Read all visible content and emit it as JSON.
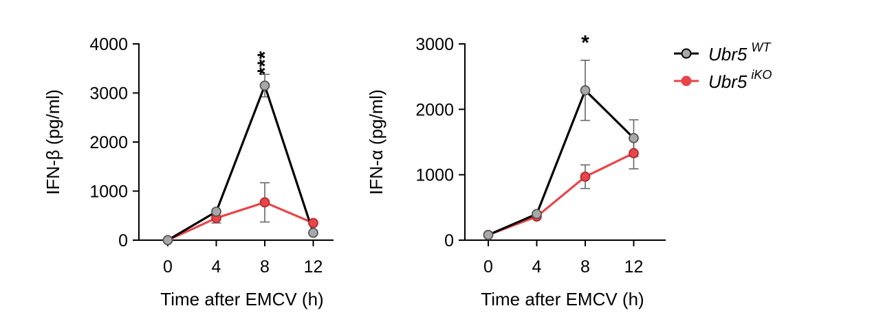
{
  "chart_data": [
    {
      "type": "line",
      "x": [
        0,
        4,
        8,
        12
      ],
      "xticks": [
        "0",
        "4",
        "8",
        "12"
      ],
      "xlim": [
        -2.5,
        14.5
      ],
      "ylim": [
        0,
        4000
      ],
      "yticks": [
        "0",
        "1000",
        "2000",
        "3000",
        "4000"
      ],
      "xlabel": "Time after EMCV (h)",
      "ylabel": "IFN-β (pg/ml)",
      "series": [
        {
          "name": "Ubr5 WT",
          "color": "#000000",
          "fill": "#a8a8a8",
          "values": [
            0,
            580,
            3150,
            150
          ],
          "errors": [
            0,
            0,
            230,
            0
          ]
        },
        {
          "name": "Ubr5 iKO",
          "color": "#e8454a",
          "fill": "#e8454a",
          "values": [
            0,
            450,
            770,
            350
          ],
          "errors": [
            0,
            100,
            400,
            0
          ]
        }
      ],
      "annotations": [
        {
          "x": 8,
          "text": "***"
        }
      ]
    },
    {
      "type": "line",
      "x": [
        0,
        4,
        8,
        12
      ],
      "xticks": [
        "0",
        "4",
        "8",
        "12"
      ],
      "xlim": [
        -2.5,
        14.5
      ],
      "ylim": [
        0,
        3000
      ],
      "yticks": [
        "0",
        "1000",
        "2000",
        "3000"
      ],
      "xlabel": "Time after EMCV (h)",
      "ylabel": "IFN-α (pg/ml)",
      "series": [
        {
          "name": "Ubr5 WT",
          "color": "#000000",
          "fill": "#a8a8a8",
          "values": [
            80,
            400,
            2290,
            1560
          ],
          "errors": [
            0,
            0,
            460,
            280
          ]
        },
        {
          "name": "Ubr5 iKO",
          "color": "#e8454a",
          "fill": "#e8454a",
          "values": [
            80,
            360,
            970,
            1330
          ],
          "errors": [
            0,
            0,
            180,
            240
          ]
        }
      ],
      "annotations": [
        {
          "x": 8,
          "text": "*"
        }
      ]
    }
  ],
  "legend": {
    "position": "top-right",
    "items": [
      {
        "base": "Ubr5",
        "sup": "WT",
        "color": "#000000",
        "fill": "#a8a8a8"
      },
      {
        "base": "Ubr5",
        "sup": "iKO",
        "color": "#e8454a",
        "fill": "#e8454a"
      }
    ]
  }
}
